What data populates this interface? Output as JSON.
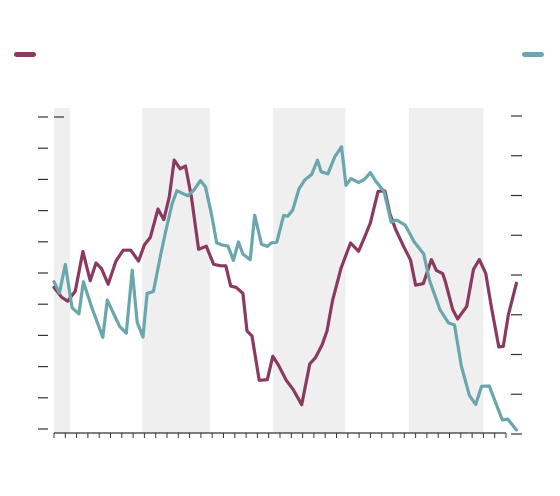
{
  "colors": {
    "series_a": "#8a3a5e",
    "series_b": "#6aa6ad",
    "band": "#efefef",
    "axis": "#333333"
  },
  "chart_data": {
    "type": "line",
    "title": "",
    "xlabel": "",
    "ylabel_left": "",
    "ylabel_right": "",
    "x_range": [
      0,
      100
    ],
    "y_left_range": [
      0,
      100
    ],
    "y_right_range": [
      0,
      100
    ],
    "y_left_ticks": [
      0,
      10,
      20,
      30,
      40,
      50,
      60,
      70,
      80,
      90,
      100
    ],
    "y_right_ticks": [
      0,
      12.5,
      25,
      37.5,
      50,
      62.5,
      75,
      87.5,
      100
    ],
    "x_tick_step": 2.5,
    "grid": false,
    "legend": "top",
    "shaded_bands": [
      [
        0,
        3.5
      ],
      [
        19.5,
        34.5
      ],
      [
        48.5,
        64.5
      ],
      [
        78.5,
        95
      ]
    ],
    "series": [
      {
        "key": "a",
        "name": "",
        "axis": "left",
        "color": "#8a3a5e",
        "x": [
          0,
          1.7,
          3,
          4.7,
          6.4,
          8,
          9.3,
          10.5,
          12,
          13.7,
          15.3,
          17,
          18.7,
          20,
          21.3,
          23,
          24.3,
          25.5,
          26.6,
          27.9,
          29.1,
          30.4,
          32,
          33.7,
          35.3,
          36.9,
          38,
          39.1,
          40.3,
          41.8,
          42.7,
          43.8,
          45.4,
          47.2,
          48.4,
          49.6,
          51.4,
          52.9,
          54.8,
          56.6,
          57.8,
          59.3,
          60.4,
          61.6,
          63.5,
          65.6,
          67.4,
          68.7,
          70,
          71.7,
          73.2,
          74.3,
          75.6,
          77.4,
          78.9,
          80,
          81.7,
          83.5,
          84.6,
          86,
          86.6,
          88.2,
          89.3,
          91.3,
          92.8,
          94.1,
          95.5,
          96.8,
          98.4,
          99.4,
          100.5,
          102.3
        ],
        "y": [
          45.4,
          42.2,
          41,
          44.1,
          56.9,
          47.5,
          53.2,
          51.4,
          46.4,
          53.8,
          57.3,
          57.3,
          53.8,
          59,
          61.4,
          70.5,
          67.1,
          74.4,
          86.2,
          83.4,
          84.3,
          74.4,
          57.6,
          58.6,
          52.8,
          52.3,
          52.3,
          45.8,
          45.4,
          43.5,
          31.4,
          29.8,
          15.6,
          15.8,
          23.3,
          20.6,
          15.6,
          12.7,
          7.8,
          20.9,
          22.8,
          26.9,
          31.4,
          41,
          51.5,
          59.6,
          57,
          61.4,
          66.1,
          76.2,
          76.3,
          69.1,
          63.9,
          58.4,
          54.1,
          46.1,
          46.6,
          54.3,
          50.8,
          49.8,
          47.2,
          38.3,
          35.3,
          39.3,
          51.2,
          54.3,
          49.9,
          38.9,
          26.3,
          26.5,
          36.5,
          46.7
        ]
      },
      {
        "key": "b",
        "name": "",
        "axis": "right",
        "color": "#6aa6ad",
        "x": [
          0,
          1.2,
          2.5,
          4,
          5.5,
          6.5,
          8.4,
          10.8,
          11.8,
          14.5,
          16,
          17.3,
          18.4,
          19.7,
          20.6,
          22,
          23.6,
          24.7,
          26.1,
          27.2,
          28.4,
          29.6,
          31,
          32.4,
          33.5,
          34.9,
          36,
          37.3,
          38.5,
          39.7,
          40.8,
          41.8,
          43.4,
          44.4,
          45.9,
          47.2,
          48.1,
          49.3,
          50.8,
          51.7,
          52.8,
          54.2,
          55.5,
          57,
          58.3,
          59.1,
          60.6,
          62.1,
          63.6,
          64.6,
          65.7,
          67.4,
          68.7,
          70,
          71.2,
          73,
          74.6,
          75.8,
          77.7,
          79.7,
          81.8,
          83.1,
          85.4,
          87.3,
          88.6,
          90.1,
          91.9,
          93.3,
          94.6,
          96.3,
          98.1,
          99.2,
          100.4,
          102.3
        ],
        "y": [
          47.9,
          44.3,
          53.3,
          39.7,
          37.8,
          47.9,
          39.6,
          30.4,
          42.1,
          33.9,
          31.7,
          51.5,
          35.1,
          30.5,
          44.2,
          44.8,
          56.4,
          63.6,
          72.3,
          76.5,
          75.7,
          74.9,
          76.8,
          79.7,
          77.8,
          68.7,
          60.1,
          59.4,
          59.1,
          54.6,
          60.4,
          56.6,
          54.8,
          68.8,
          59.7,
          59,
          60.1,
          60.3,
          68.7,
          68.5,
          70.4,
          77.1,
          79.9,
          81.6,
          86.1,
          82.5,
          81.8,
          87.1,
          90.3,
          78.2,
          80.3,
          79.1,
          80.1,
          82.2,
          79.5,
          76.3,
          66.6,
          67.3,
          65.7,
          60.4,
          56.6,
          48.2,
          39.1,
          34.9,
          34.3,
          21.4,
          12.1,
          9.3,
          15,
          15.1,
          8.4,
          4.4,
          4.7,
          1.3
        ]
      }
    ]
  }
}
